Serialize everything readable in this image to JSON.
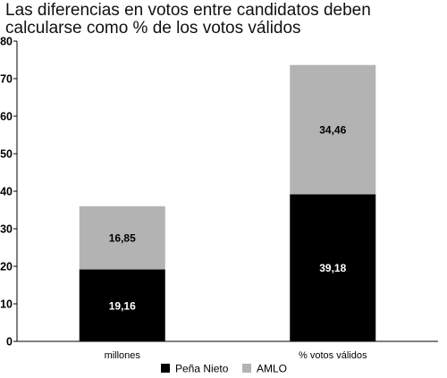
{
  "title": "Las diferencias en votos entre candidatos deben calcularse como % de los votos válidos",
  "chart_data": {
    "type": "bar",
    "stacked": true,
    "categories": [
      "millones",
      "% votos válidos"
    ],
    "series": [
      {
        "name": "Peña Nieto",
        "values": [
          19.16,
          39.18
        ],
        "labels": [
          "19,16",
          "39,18"
        ],
        "color": "#000000",
        "label_color": "#ffffff"
      },
      {
        "name": "AMLO",
        "values": [
          16.85,
          34.46
        ],
        "labels": [
          "16,85",
          "34,46"
        ],
        "color": "#b3b3b3",
        "label_color": "#000000"
      }
    ],
    "ylim": [
      0,
      80
    ],
    "yticks": [
      0,
      10,
      20,
      30,
      40,
      50,
      60,
      70,
      80
    ],
    "ytick_labels": [
      "0",
      "10",
      "20",
      "30",
      "40",
      "50",
      "60",
      "70",
      "80"
    ],
    "xlabel": "",
    "ylabel": "",
    "grid": false,
    "legend_position": "bottom"
  }
}
